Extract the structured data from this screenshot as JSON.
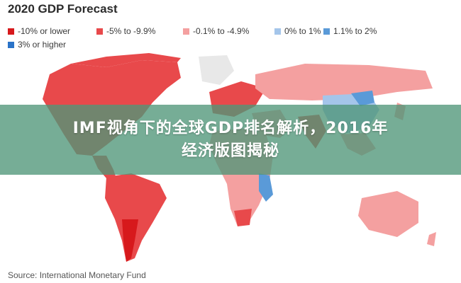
{
  "title": "2020 GDP Forecast",
  "legend": [
    {
      "label": "-10% or lower",
      "color": "#d7191c"
    },
    {
      "label": "-5% to -9.9%",
      "color": "#e8494b"
    },
    {
      "label": "-0.1% to -4.9%",
      "color": "#f4a0a0"
    },
    {
      "label": "0% to 1%",
      "color": "#a4c5ea"
    },
    {
      "label": "1.1% to 2%",
      "color": "#5a9ad8"
    },
    {
      "label": "3% or higher",
      "color": "#2a73c8"
    }
  ],
  "banner": {
    "line1": "IMF视角下的全球GDP排名解析，2016年",
    "line2": "经济版图揭秘"
  },
  "source": "Source: International Monetary Fund"
}
